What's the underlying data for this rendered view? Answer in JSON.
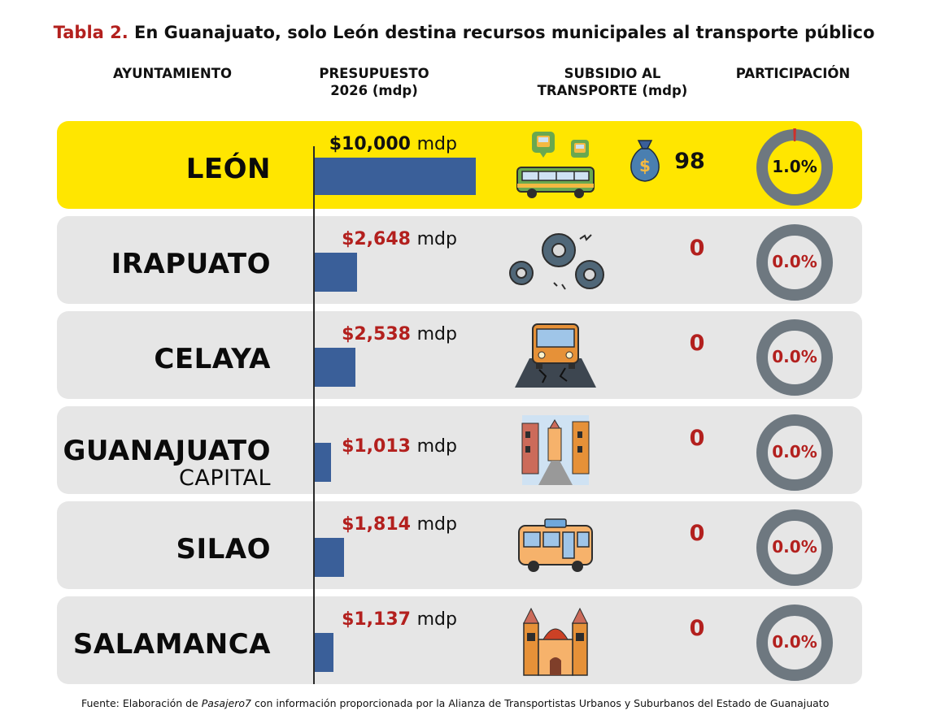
{
  "title": {
    "label": "Tabla 2.",
    "text": "En Guanajuato, solo León destina recursos municipales al transporte público"
  },
  "columns": {
    "municipality": "AYUNTAMIENTO",
    "budget": [
      "PRESUPUESTO",
      "2026 (mdp)"
    ],
    "subsidy": [
      "SUBSIDIO AL",
      "TRANSPORTE (mdp)"
    ],
    "share": "PARTICIPACIÓN"
  },
  "colors": {
    "bar": "#3a5f99",
    "highlight_row": "#ffe600",
    "row": "#e6e6e6",
    "amount_red": "#b3201e",
    "amount_black": "#111111",
    "donut": "#6e7880",
    "donut_fill": "#d0302a"
  },
  "chart_data": {
    "type": "bar",
    "orientation": "horizontal",
    "categories": [
      "LEÓN",
      "IRAPUATO",
      "CELAYA",
      "GUANAJUATO CAPITAL",
      "SILAO",
      "SALAMANCA"
    ],
    "series": [
      {
        "name": "PRESUPUESTO 2026 (mdp)",
        "values": [
          10000,
          2648,
          2538,
          1013,
          1814,
          1137
        ]
      },
      {
        "name": "SUBSIDIO AL TRANSPORTE (mdp)",
        "values": [
          98,
          0,
          0,
          0,
          0,
          0
        ]
      },
      {
        "name": "PARTICIPACIÓN",
        "values": [
          1.0,
          0.0,
          0.0,
          0.0,
          0.0,
          0.0
        ]
      }
    ],
    "xlim": [
      0,
      10000
    ]
  },
  "rows": [
    {
      "name": "LEÓN",
      "sub": "",
      "budget_text": "$10,000",
      "unit": "mdp",
      "subsidy": "98",
      "share": "1.0%",
      "share_pct": 1.0,
      "icon": "bus-stop-icon",
      "highlight": true
    },
    {
      "name": "IRAPUATO",
      "sub": "",
      "budget_text": "$2,648",
      "unit": "mdp",
      "subsidy": "0",
      "share": "0.0%",
      "share_pct": 0.0,
      "icon": "gears-icon",
      "highlight": false
    },
    {
      "name": "CELAYA",
      "sub": "",
      "budget_text": "$2,538",
      "unit": "mdp",
      "subsidy": "0",
      "share": "0.0%",
      "share_pct": 0.0,
      "icon": "bus-cracked-road-icon",
      "highlight": false
    },
    {
      "name": "GUANAJUATO",
      "sub": "CAPITAL",
      "budget_text": "$1,013",
      "unit": "mdp",
      "subsidy": "0",
      "share": "0.0%",
      "share_pct": 0.0,
      "icon": "city-street-icon",
      "highlight": false
    },
    {
      "name": "SILAO",
      "sub": "",
      "budget_text": "$1,814",
      "unit": "mdp",
      "subsidy": "0",
      "share": "0.0%",
      "share_pct": 0.0,
      "icon": "bus-icon",
      "highlight": false
    },
    {
      "name": "SALAMANCA",
      "sub": "",
      "budget_text": "$1,137",
      "unit": "mdp",
      "subsidy": "0",
      "share": "0.0%",
      "share_pct": 0.0,
      "icon": "cathedral-icon",
      "highlight": false
    }
  ],
  "footnote": {
    "before": "Fuente: Elaboración de ",
    "source": "Pasajero7",
    "after": " con información proporcionada por la Alianza de Transportistas Urbanos y Suburbanos del Estado de Guanajuato"
  }
}
